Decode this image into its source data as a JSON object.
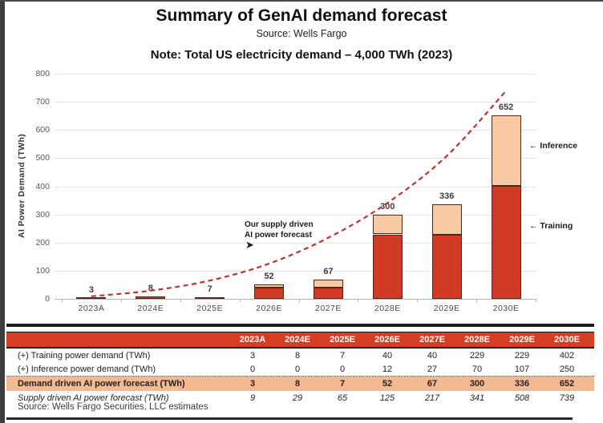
{
  "header": {
    "title": "Summary of GenAI demand forecast",
    "subtitle": "Source: Wells Fargo",
    "note": "Note: Total US electricity demand – 4,000 TWh (2023)"
  },
  "chart_data": {
    "type": "bar",
    "stacked": true,
    "title": "Summary of GenAI demand forecast",
    "categories": [
      "2023A",
      "2024E",
      "2025E",
      "2026E",
      "2027E",
      "2028E",
      "2029E",
      "2030E"
    ],
    "series": [
      {
        "name": "Training",
        "values": [
          3,
          8,
          7,
          40,
          40,
          229,
          229,
          402
        ]
      },
      {
        "name": "Inference",
        "values": [
          0,
          0,
          0,
          12,
          27,
          70,
          107,
          250
        ]
      }
    ],
    "totals": [
      3,
      8,
      7,
      52,
      67,
      300,
      336,
      652
    ],
    "line_series": {
      "name": "Supply driven AI power forecast",
      "values": [
        9,
        29,
        65,
        125,
        217,
        341,
        508,
        739
      ],
      "style": "dashed"
    },
    "xlabel": "",
    "ylabel": "AI Power Demand (TWh)",
    "ylim": [
      0,
      800
    ],
    "ytick_step": 100,
    "grid": true,
    "legend_position": "none",
    "annotations": [
      {
        "text": "Our supply driven\nAI power forecast",
        "arrow": "➤"
      },
      {
        "arrow": "←",
        "text": "Inference"
      },
      {
        "arrow": "←",
        "text": "Training"
      }
    ]
  },
  "table": {
    "columns": [
      "2023A",
      "2024E",
      "2025E",
      "2026E",
      "2027E",
      "2028E",
      "2029E",
      "2030E"
    ],
    "rows": [
      {
        "label": "(+) Training power demand (TWh)",
        "values": [
          3,
          8,
          7,
          40,
          40,
          229,
          229,
          402
        ],
        "style": "plain"
      },
      {
        "label": "(+) Inference power demand (TWh)",
        "values": [
          0,
          0,
          0,
          12,
          27,
          70,
          107,
          250
        ],
        "style": "dotted"
      },
      {
        "label": "Demand driven AI power forecast (TWh)",
        "values": [
          3,
          8,
          7,
          52,
          67,
          300,
          336,
          652
        ],
        "style": "highlight"
      },
      {
        "label": "Supply driven AI power forecast (TWh)",
        "values": [
          9,
          29,
          65,
          125,
          217,
          341,
          508,
          739
        ],
        "style": "italic"
      }
    ],
    "source": "Source: Wells Fargo Securities, LLC estimates"
  },
  "colors": {
    "training": "#cf3b24",
    "inference": "#f9c9a3",
    "bar_border": "#53251a",
    "supply_line": "#bf3330",
    "table_header_bg": "#d63d24",
    "table_header_text": "#ffffff",
    "highlight_row_bg": "#f3b991",
    "grid": "#e3e3e3",
    "axis_text": "#5a5a5a",
    "divider": "#1c1c1c"
  }
}
